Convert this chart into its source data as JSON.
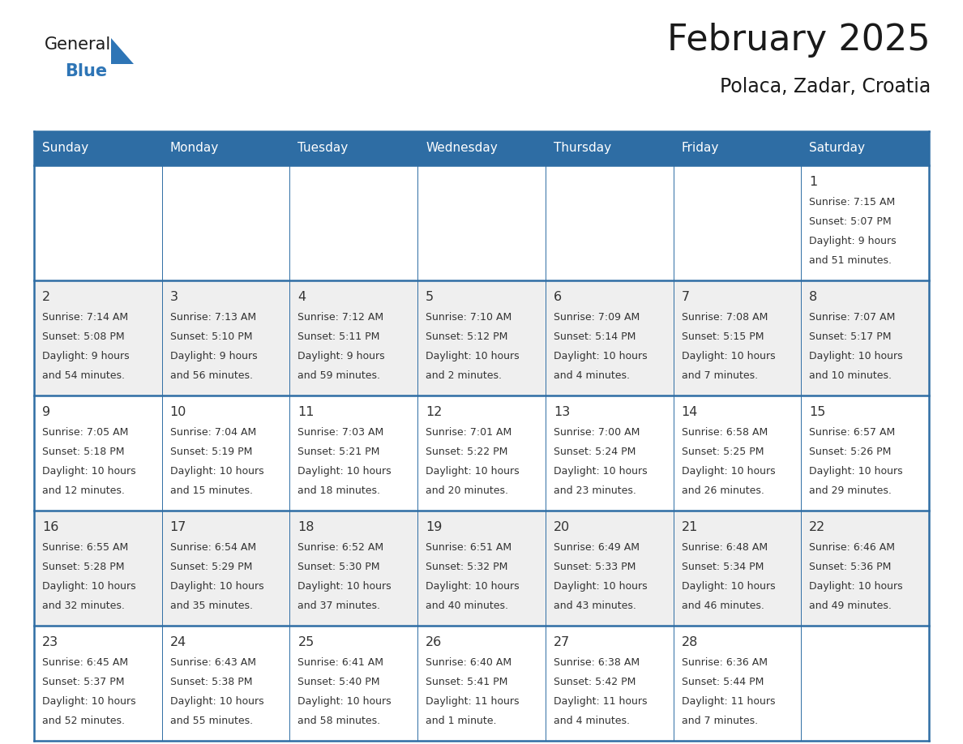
{
  "title": "February 2025",
  "subtitle": "Polaca, Zadar, Croatia",
  "header_bg": "#2E6DA4",
  "header_text_color": "#FFFFFF",
  "row_bg_white": "#FFFFFF",
  "row_bg_gray": "#EFEFEF",
  "border_color": "#2E6DA4",
  "title_color": "#1a1a1a",
  "day_number_color": "#333333",
  "cell_text_color": "#333333",
  "days_of_week": [
    "Sunday",
    "Monday",
    "Tuesday",
    "Wednesday",
    "Thursday",
    "Friday",
    "Saturday"
  ],
  "logo_text1": "General",
  "logo_text2": "Blue",
  "logo_color1": "#1a1a1a",
  "logo_color2": "#2E75B6",
  "calendar_data": [
    [
      null,
      null,
      null,
      null,
      null,
      null,
      {
        "day": "1",
        "sunrise": "7:15 AM",
        "sunset": "5:07 PM",
        "daylight_line1": "Daylight: 9 hours",
        "daylight_line2": "and 51 minutes."
      }
    ],
    [
      {
        "day": "2",
        "sunrise": "7:14 AM",
        "sunset": "5:08 PM",
        "daylight_line1": "Daylight: 9 hours",
        "daylight_line2": "and 54 minutes."
      },
      {
        "day": "3",
        "sunrise": "7:13 AM",
        "sunset": "5:10 PM",
        "daylight_line1": "Daylight: 9 hours",
        "daylight_line2": "and 56 minutes."
      },
      {
        "day": "4",
        "sunrise": "7:12 AM",
        "sunset": "5:11 PM",
        "daylight_line1": "Daylight: 9 hours",
        "daylight_line2": "and 59 minutes."
      },
      {
        "day": "5",
        "sunrise": "7:10 AM",
        "sunset": "5:12 PM",
        "daylight_line1": "Daylight: 10 hours",
        "daylight_line2": "and 2 minutes."
      },
      {
        "day": "6",
        "sunrise": "7:09 AM",
        "sunset": "5:14 PM",
        "daylight_line1": "Daylight: 10 hours",
        "daylight_line2": "and 4 minutes."
      },
      {
        "day": "7",
        "sunrise": "7:08 AM",
        "sunset": "5:15 PM",
        "daylight_line1": "Daylight: 10 hours",
        "daylight_line2": "and 7 minutes."
      },
      {
        "day": "8",
        "sunrise": "7:07 AM",
        "sunset": "5:17 PM",
        "daylight_line1": "Daylight: 10 hours",
        "daylight_line2": "and 10 minutes."
      }
    ],
    [
      {
        "day": "9",
        "sunrise": "7:05 AM",
        "sunset": "5:18 PM",
        "daylight_line1": "Daylight: 10 hours",
        "daylight_line2": "and 12 minutes."
      },
      {
        "day": "10",
        "sunrise": "7:04 AM",
        "sunset": "5:19 PM",
        "daylight_line1": "Daylight: 10 hours",
        "daylight_line2": "and 15 minutes."
      },
      {
        "day": "11",
        "sunrise": "7:03 AM",
        "sunset": "5:21 PM",
        "daylight_line1": "Daylight: 10 hours",
        "daylight_line2": "and 18 minutes."
      },
      {
        "day": "12",
        "sunrise": "7:01 AM",
        "sunset": "5:22 PM",
        "daylight_line1": "Daylight: 10 hours",
        "daylight_line2": "and 20 minutes."
      },
      {
        "day": "13",
        "sunrise": "7:00 AM",
        "sunset": "5:24 PM",
        "daylight_line1": "Daylight: 10 hours",
        "daylight_line2": "and 23 minutes."
      },
      {
        "day": "14",
        "sunrise": "6:58 AM",
        "sunset": "5:25 PM",
        "daylight_line1": "Daylight: 10 hours",
        "daylight_line2": "and 26 minutes."
      },
      {
        "day": "15",
        "sunrise": "6:57 AM",
        "sunset": "5:26 PM",
        "daylight_line1": "Daylight: 10 hours",
        "daylight_line2": "and 29 minutes."
      }
    ],
    [
      {
        "day": "16",
        "sunrise": "6:55 AM",
        "sunset": "5:28 PM",
        "daylight_line1": "Daylight: 10 hours",
        "daylight_line2": "and 32 minutes."
      },
      {
        "day": "17",
        "sunrise": "6:54 AM",
        "sunset": "5:29 PM",
        "daylight_line1": "Daylight: 10 hours",
        "daylight_line2": "and 35 minutes."
      },
      {
        "day": "18",
        "sunrise": "6:52 AM",
        "sunset": "5:30 PM",
        "daylight_line1": "Daylight: 10 hours",
        "daylight_line2": "and 37 minutes."
      },
      {
        "day": "19",
        "sunrise": "6:51 AM",
        "sunset": "5:32 PM",
        "daylight_line1": "Daylight: 10 hours",
        "daylight_line2": "and 40 minutes."
      },
      {
        "day": "20",
        "sunrise": "6:49 AM",
        "sunset": "5:33 PM",
        "daylight_line1": "Daylight: 10 hours",
        "daylight_line2": "and 43 minutes."
      },
      {
        "day": "21",
        "sunrise": "6:48 AM",
        "sunset": "5:34 PM",
        "daylight_line1": "Daylight: 10 hours",
        "daylight_line2": "and 46 minutes."
      },
      {
        "day": "22",
        "sunrise": "6:46 AM",
        "sunset": "5:36 PM",
        "daylight_line1": "Daylight: 10 hours",
        "daylight_line2": "and 49 minutes."
      }
    ],
    [
      {
        "day": "23",
        "sunrise": "6:45 AM",
        "sunset": "5:37 PM",
        "daylight_line1": "Daylight: 10 hours",
        "daylight_line2": "and 52 minutes."
      },
      {
        "day": "24",
        "sunrise": "6:43 AM",
        "sunset": "5:38 PM",
        "daylight_line1": "Daylight: 10 hours",
        "daylight_line2": "and 55 minutes."
      },
      {
        "day": "25",
        "sunrise": "6:41 AM",
        "sunset": "5:40 PM",
        "daylight_line1": "Daylight: 10 hours",
        "daylight_line2": "and 58 minutes."
      },
      {
        "day": "26",
        "sunrise": "6:40 AM",
        "sunset": "5:41 PM",
        "daylight_line1": "Daylight: 11 hours",
        "daylight_line2": "and 1 minute."
      },
      {
        "day": "27",
        "sunrise": "6:38 AM",
        "sunset": "5:42 PM",
        "daylight_line1": "Daylight: 11 hours",
        "daylight_line2": "and 4 minutes."
      },
      {
        "day": "28",
        "sunrise": "6:36 AM",
        "sunset": "5:44 PM",
        "daylight_line1": "Daylight: 11 hours",
        "daylight_line2": "and 7 minutes."
      },
      null
    ]
  ]
}
